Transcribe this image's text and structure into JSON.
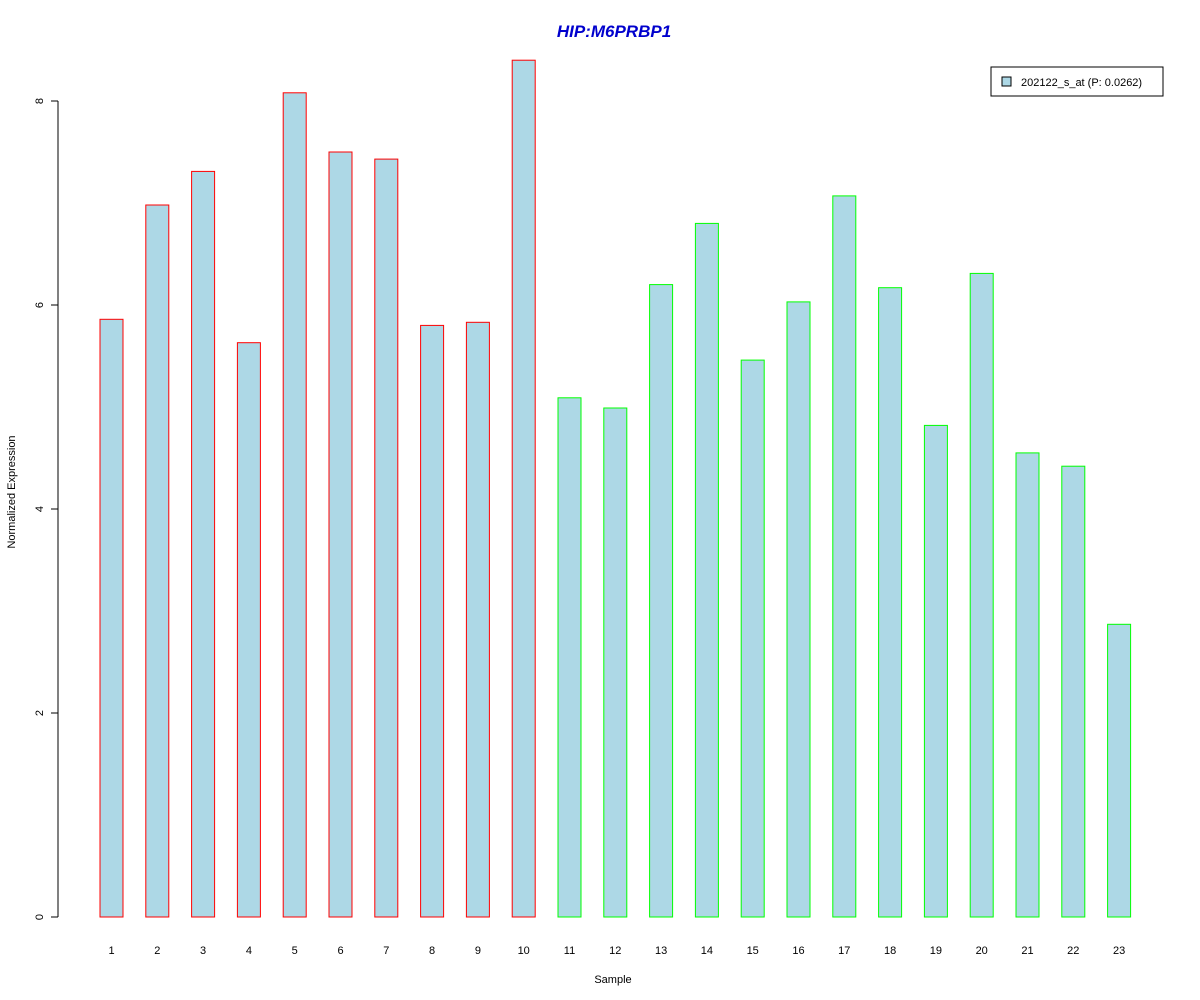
{
  "chart_data": {
    "type": "bar",
    "title": "HIP:M6PRBP1",
    "xlabel": "Sample",
    "ylabel": "Normalized Expression",
    "categories": [
      "1",
      "2",
      "3",
      "4",
      "5",
      "6",
      "7",
      "8",
      "9",
      "10",
      "11",
      "12",
      "13",
      "14",
      "15",
      "16",
      "17",
      "18",
      "19",
      "20",
      "21",
      "22",
      "23"
    ],
    "series": [
      {
        "name": "202122_s_at (P: 0.0262)",
        "values": [
          5.86,
          6.98,
          7.31,
          5.63,
          8.08,
          7.5,
          7.43,
          5.8,
          5.83,
          8.4,
          5.09,
          4.99,
          6.2,
          6.8,
          5.46,
          6.03,
          7.07,
          6.17,
          4.82,
          6.31,
          4.55,
          4.42,
          2.87
        ]
      }
    ],
    "bar_fill": "#add8e6",
    "group_border_colors": [
      "#ff0000",
      "#ff0000",
      "#ff0000",
      "#ff0000",
      "#ff0000",
      "#ff0000",
      "#ff0000",
      "#ff0000",
      "#ff0000",
      "#ff0000",
      "#00ff00",
      "#00ff00",
      "#00ff00",
      "#00ff00",
      "#00ff00",
      "#00ff00",
      "#00ff00",
      "#00ff00",
      "#00ff00",
      "#00ff00",
      "#00ff00",
      "#00ff00",
      "#00ff00"
    ],
    "title_color": "#0000cd",
    "yticks": [
      0,
      2,
      4,
      6,
      8
    ],
    "ylim": [
      0,
      8.4
    ],
    "grid": false,
    "legend_position": "top-right"
  }
}
